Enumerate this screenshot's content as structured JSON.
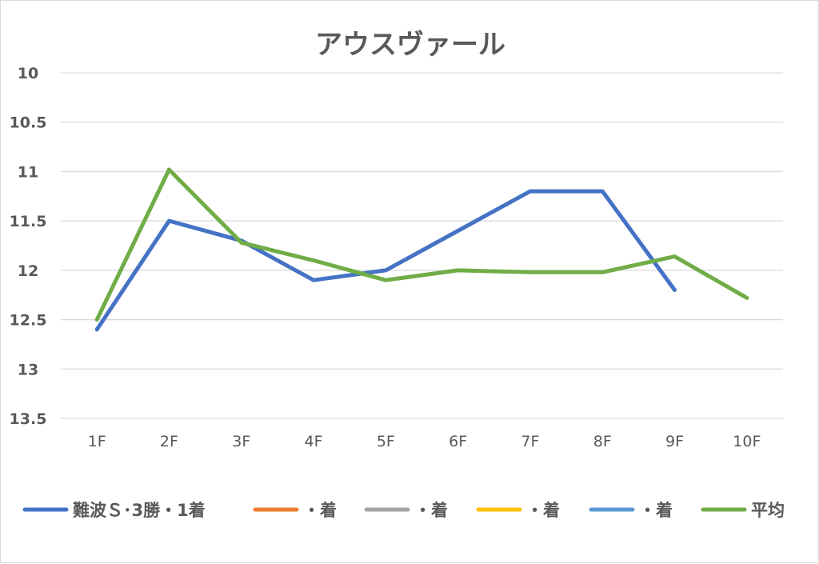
{
  "chart_data": {
    "type": "line",
    "title": "アウスヴァール",
    "xlabel": "",
    "ylabel": "",
    "categories": [
      "1F",
      "2F",
      "3F",
      "4F",
      "5F",
      "6F",
      "7F",
      "8F",
      "9F",
      "10F"
    ],
    "y_axis_reversed": true,
    "ylim": [
      10,
      13.5
    ],
    "yticks": [
      "10",
      "10.5",
      "11",
      "11.5",
      "12",
      "12.5",
      "13",
      "13.5"
    ],
    "ytick_values": [
      10,
      10.5,
      11,
      11.5,
      12,
      12.5,
      13,
      13.5
    ],
    "grid": true,
    "legend_position": "bottom",
    "series": [
      {
        "name": "難波Ｓ･3勝・1着",
        "color": "#4472C4",
        "values": [
          12.6,
          11.5,
          11.7,
          12.1,
          12.0,
          11.6,
          11.2,
          11.2,
          12.2,
          null
        ]
      },
      {
        "name": "・着",
        "color": "#ED7D31",
        "values": [
          null,
          null,
          null,
          null,
          null,
          null,
          null,
          null,
          null,
          null
        ]
      },
      {
        "name": "・着",
        "color": "#A5A5A5",
        "values": [
          null,
          null,
          null,
          null,
          null,
          null,
          null,
          null,
          null,
          null
        ]
      },
      {
        "name": "・着",
        "color": "#FFC000",
        "values": [
          null,
          null,
          null,
          null,
          null,
          null,
          null,
          null,
          null,
          null
        ]
      },
      {
        "name": "・着",
        "color": "#5B9BD5",
        "values": [
          null,
          null,
          null,
          null,
          null,
          null,
          null,
          null,
          null,
          null
        ]
      },
      {
        "name": "平均",
        "color": "#70AD47",
        "values": [
          12.5,
          10.98,
          11.72,
          11.9,
          12.1,
          12.0,
          12.02,
          12.02,
          11.86,
          12.28
        ]
      }
    ]
  }
}
